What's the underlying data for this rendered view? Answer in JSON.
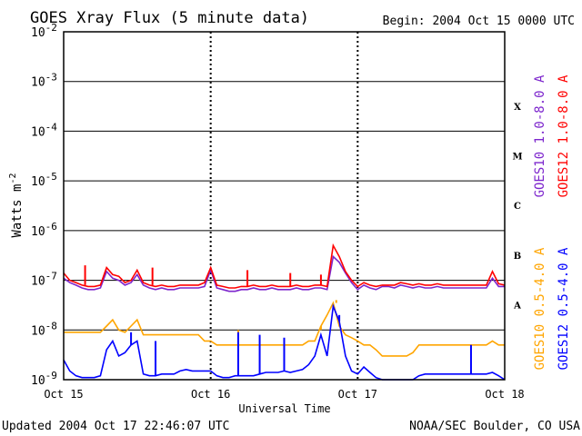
{
  "chart_data": {
    "type": "line",
    "title": "GOES Xray Flux (5 minute data)",
    "begin_label": "Begin:  2004 Oct 15 0000 UTC",
    "ylabel": "Watts m",
    "ylabel_sup": "-2",
    "xlabel": "Universal Time",
    "y_scale": "log",
    "ylim": [
      1e-09,
      0.01
    ],
    "xlim": [
      0,
      72
    ],
    "x_unit": "hours since 2004 Oct 15 00:00 UTC",
    "y_ticks": [
      {
        "base": "10",
        "exp": "-2",
        "value": 0.01
      },
      {
        "base": "10",
        "exp": "-3",
        "value": 0.001
      },
      {
        "base": "10",
        "exp": "-4",
        "value": 0.0001
      },
      {
        "base": "10",
        "exp": "-5",
        "value": 1e-05
      },
      {
        "base": "10",
        "exp": "-6",
        "value": 1e-06
      },
      {
        "base": "10",
        "exp": "-7",
        "value": 1e-07
      },
      {
        "base": "10",
        "exp": "-8",
        "value": 1e-08
      },
      {
        "base": "10",
        "exp": "-9",
        "value": 1e-09
      }
    ],
    "x_ticks": [
      {
        "label": "Oct 15",
        "value": 0
      },
      {
        "label": "Oct 16",
        "value": 24
      },
      {
        "label": "Oct 17",
        "value": 48
      },
      {
        "label": "Oct 18",
        "value": 72
      }
    ],
    "flare_classes": [
      {
        "label": "X",
        "value": 0.00032
      },
      {
        "label": "M",
        "value": 3.2e-05
      },
      {
        "label": "C",
        "value": 3.2e-06
      },
      {
        "label": "B",
        "value": 3.2e-07
      },
      {
        "label": "A",
        "value": 3.2e-08
      }
    ],
    "grid": true,
    "series": [
      {
        "name": "GOES10 1.0-8.0 A",
        "color": "#7d26cd",
        "x": [
          0,
          1,
          2,
          3,
          4,
          5,
          6,
          7,
          8,
          9,
          10,
          11,
          12,
          13,
          14,
          15,
          16,
          17,
          18,
          19,
          20,
          21,
          22,
          23,
          24,
          25,
          26,
          27,
          28,
          29,
          30,
          31,
          32,
          33,
          34,
          35,
          36,
          37,
          38,
          39,
          40,
          41,
          42,
          43,
          44,
          45,
          46,
          47,
          48,
          49,
          50,
          51,
          52,
          53,
          54,
          55,
          56,
          57,
          58,
          59,
          60,
          61,
          62,
          63,
          64,
          65,
          66,
          67,
          68,
          69,
          70,
          71,
          72
        ],
        "y": [
          1.1e-07,
          9e-08,
          8e-08,
          7e-08,
          6.5e-08,
          6.5e-08,
          7e-08,
          1.5e-07,
          1.1e-07,
          1e-07,
          8e-08,
          9e-08,
          1.3e-07,
          8e-08,
          7e-08,
          6.5e-08,
          7e-08,
          6.5e-08,
          6.5e-08,
          7e-08,
          7e-08,
          7e-08,
          7e-08,
          7.5e-08,
          1.6e-07,
          7e-08,
          6.5e-08,
          6e-08,
          6e-08,
          6.5e-08,
          6.5e-08,
          7e-08,
          6.5e-08,
          6.5e-08,
          7e-08,
          6.5e-08,
          6.5e-08,
          6.5e-08,
          7e-08,
          6.5e-08,
          6.5e-08,
          7e-08,
          7e-08,
          6.5e-08,
          3e-07,
          2.3e-07,
          1.4e-07,
          9e-08,
          6.5e-08,
          8e-08,
          7e-08,
          6.5e-08,
          7.5e-08,
          7.5e-08,
          7e-08,
          8e-08,
          7.5e-08,
          7e-08,
          7.5e-08,
          7e-08,
          7e-08,
          7.5e-08,
          7e-08,
          7e-08,
          7e-08,
          7e-08,
          7e-08,
          7e-08,
          7e-08,
          7e-08,
          1.1e-07,
          7.5e-08,
          7.5e-08
        ]
      },
      {
        "name": "GOES12 1.0-8.0 A",
        "color": "#ff0000",
        "x": [
          0,
          1,
          2,
          3,
          4,
          5,
          6,
          7,
          8,
          9,
          10,
          11,
          12,
          13,
          14,
          15,
          16,
          17,
          18,
          19,
          20,
          21,
          22,
          23,
          24,
          25,
          26,
          27,
          28,
          29,
          30,
          31,
          32,
          33,
          34,
          35,
          36,
          37,
          38,
          39,
          40,
          41,
          42,
          43,
          44,
          45,
          46,
          47,
          48,
          49,
          50,
          51,
          52,
          53,
          54,
          55,
          56,
          57,
          58,
          59,
          60,
          61,
          62,
          63,
          64,
          65,
          66,
          67,
          68,
          69,
          70,
          71,
          72
        ],
        "y": [
          1.4e-07,
          1e-07,
          9e-08,
          8e-08,
          7.5e-08,
          7.5e-08,
          8e-08,
          1.8e-07,
          1.3e-07,
          1.2e-07,
          9e-08,
          1e-07,
          1.6e-07,
          9e-08,
          8e-08,
          7.5e-08,
          8e-08,
          7.5e-08,
          7.5e-08,
          8e-08,
          8e-08,
          8e-08,
          8e-08,
          9e-08,
          1.8e-07,
          8e-08,
          7.5e-08,
          7e-08,
          7e-08,
          7.5e-08,
          7.5e-08,
          8e-08,
          7.5e-08,
          7.5e-08,
          8e-08,
          7.5e-08,
          7.5e-08,
          7.5e-08,
          8e-08,
          7.5e-08,
          7.5e-08,
          8e-08,
          8e-08,
          7.5e-08,
          5e-07,
          3e-07,
          1.5e-07,
          1e-07,
          7.5e-08,
          9e-08,
          8e-08,
          7.5e-08,
          8e-08,
          8e-08,
          8e-08,
          9e-08,
          8.5e-08,
          8e-08,
          8.5e-08,
          8e-08,
          8e-08,
          8.5e-08,
          8e-08,
          8e-08,
          8e-08,
          8e-08,
          8e-08,
          8e-08,
          8e-08,
          8e-08,
          1.5e-07,
          8.5e-08,
          8e-08
        ]
      },
      {
        "name": "GOES10 0.5-4.0 A",
        "color": "#ffa500",
        "x": [
          0,
          1,
          2,
          3,
          4,
          5,
          6,
          7,
          8,
          9,
          10,
          11,
          12,
          13,
          14,
          15,
          16,
          17,
          18,
          19,
          20,
          21,
          22,
          23,
          24,
          25,
          26,
          27,
          28,
          29,
          30,
          31,
          32,
          33,
          34,
          35,
          36,
          37,
          38,
          39,
          40,
          41,
          42,
          43,
          44,
          45,
          46,
          47,
          48,
          49,
          50,
          51,
          52,
          53,
          54,
          55,
          56,
          57,
          58,
          59,
          60,
          61,
          62,
          63,
          64,
          65,
          66,
          67,
          68,
          69,
          70,
          71,
          72
        ],
        "y": [
          9e-09,
          9e-09,
          9e-09,
          9e-09,
          9e-09,
          9e-09,
          9e-09,
          1.2e-08,
          1.6e-08,
          1e-08,
          9e-09,
          1.2e-08,
          1.6e-08,
          8e-09,
          8e-09,
          8e-09,
          8e-09,
          8e-09,
          8e-09,
          8e-09,
          8e-09,
          8e-09,
          8e-09,
          6e-09,
          6e-09,
          5e-09,
          5e-09,
          5e-09,
          5e-09,
          5e-09,
          5e-09,
          5e-09,
          5e-09,
          5e-09,
          5e-09,
          5e-09,
          5e-09,
          5e-09,
          5e-09,
          5e-09,
          6e-09,
          6e-09,
          1.2e-08,
          2e-08,
          3.5e-08,
          1.2e-08,
          8e-09,
          7e-09,
          6e-09,
          5e-09,
          5e-09,
          4e-09,
          3e-09,
          3e-09,
          3e-09,
          3e-09,
          3e-09,
          3.5e-09,
          5e-09,
          5e-09,
          5e-09,
          5e-09,
          5e-09,
          5e-09,
          5e-09,
          5e-09,
          5e-09,
          5e-09,
          5e-09,
          5e-09,
          6e-09,
          5e-09,
          5e-09
        ]
      },
      {
        "name": "GOES12 0.5-4.0 A",
        "color": "#0000ff",
        "x": [
          0,
          1,
          2,
          3,
          4,
          5,
          6,
          7,
          8,
          9,
          10,
          11,
          12,
          13,
          14,
          15,
          16,
          17,
          18,
          19,
          20,
          21,
          22,
          23,
          24,
          25,
          26,
          27,
          28,
          29,
          30,
          31,
          32,
          33,
          34,
          35,
          36,
          37,
          38,
          39,
          40,
          41,
          42,
          43,
          44,
          45,
          46,
          47,
          48,
          49,
          50,
          51,
          52,
          53,
          54,
          55,
          56,
          57,
          58,
          59,
          60,
          61,
          62,
          63,
          64,
          65,
          66,
          67,
          68,
          69,
          70,
          71,
          72
        ],
        "y": [
          2.5e-09,
          1.5e-09,
          1.2e-09,
          1.1e-09,
          1.1e-09,
          1.1e-09,
          1.2e-09,
          4e-09,
          6e-09,
          3e-09,
          3.5e-09,
          5e-09,
          6e-09,
          1.3e-09,
          1.2e-09,
          1.2e-09,
          1.3e-09,
          1.3e-09,
          1.3e-09,
          1.5e-09,
          1.6e-09,
          1.5e-09,
          1.5e-09,
          1.5e-09,
          1.5e-09,
          1.2e-09,
          1.1e-09,
          1.1e-09,
          1.2e-09,
          1.2e-09,
          1.2e-09,
          1.2e-09,
          1.3e-09,
          1.4e-09,
          1.4e-09,
          1.4e-09,
          1.5e-09,
          1.4e-09,
          1.5e-09,
          1.6e-09,
          2e-09,
          3e-09,
          8e-09,
          3e-09,
          3e-08,
          1.5e-08,
          3e-09,
          1.5e-09,
          1.3e-09,
          1.8e-09,
          1.4e-09,
          1.1e-09,
          1e-09,
          1e-09,
          1e-09,
          1e-09,
          1e-09,
          1e-09,
          1.2e-09,
          1.3e-09,
          1.3e-09,
          1.3e-09,
          1.3e-09,
          1.3e-09,
          1.3e-09,
          1.3e-09,
          1.3e-09,
          1.3e-09,
          1.3e-09,
          1.3e-09,
          1.4e-09,
          1.2e-09,
          1e-09
        ]
      }
    ],
    "spikes": [
      {
        "series": 3,
        "x": 11.0,
        "y": 9e-09
      },
      {
        "series": 3,
        "x": 15.0,
        "y": 6e-09
      },
      {
        "series": 3,
        "x": 28.5,
        "y": 9e-09
      },
      {
        "series": 3,
        "x": 32.0,
        "y": 8e-09
      },
      {
        "series": 3,
        "x": 36.0,
        "y": 7e-09
      },
      {
        "series": 3,
        "x": 45.0,
        "y": 2e-08
      },
      {
        "series": 3,
        "x": 66.5,
        "y": 5e-09
      },
      {
        "series": 2,
        "x": 28.5,
        "y": 1e-08
      },
      {
        "series": 2,
        "x": 42.0,
        "y": 1e-08
      },
      {
        "series": 2,
        "x": 44.5,
        "y": 4e-08
      },
      {
        "series": 1,
        "x": 3.5,
        "y": 2e-07
      },
      {
        "series": 1,
        "x": 14.5,
        "y": 1.8e-07
      },
      {
        "series": 1,
        "x": 30.0,
        "y": 1.6e-07
      },
      {
        "series": 1,
        "x": 37.0,
        "y": 1.4e-07
      },
      {
        "series": 1,
        "x": 42.0,
        "y": 1.3e-07
      }
    ]
  },
  "footer": {
    "updated": "Updated 2004 Oct 17 22:46:07 UTC",
    "source": "NOAA/SEC Boulder, CO USA"
  }
}
